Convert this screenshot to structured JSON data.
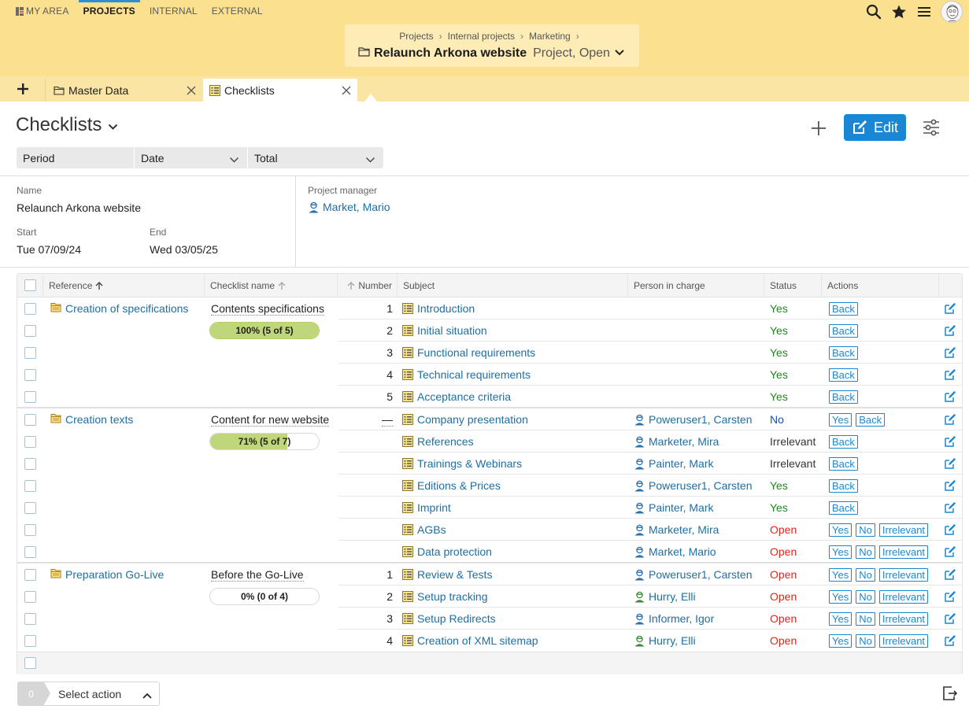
{
  "nav": {
    "items": [
      {
        "label": "MY AREA",
        "active": false
      },
      {
        "label": "PROJECTS",
        "active": true
      },
      {
        "label": "INTERNAL",
        "active": false
      },
      {
        "label": "EXTERNAL",
        "active": false
      }
    ]
  },
  "breadcrumb": [
    "Projects",
    "Internal projects",
    "Marketing"
  ],
  "object": {
    "name": "Relaunch Arkona website",
    "type": "Project, Open"
  },
  "tabs": [
    {
      "label": "Master Data",
      "active": false
    },
    {
      "label": "Checklists",
      "active": true
    }
  ],
  "page": {
    "title": "Checklists",
    "edit_label": "Edit"
  },
  "filters": [
    {
      "label": "Period"
    },
    {
      "label": "Date"
    },
    {
      "label": "Total"
    }
  ],
  "details": {
    "name_label": "Name",
    "name": "Relaunch Arkona website",
    "start_label": "Start",
    "start": "Tue 07/09/24",
    "end_label": "End",
    "end": "Wed 03/05/25",
    "pm_label": "Project manager",
    "pm": "Market, Mario"
  },
  "table": {
    "headers": {
      "reference": "Reference",
      "checklist": "Checklist name",
      "number": "Number",
      "subject": "Subject",
      "person": "Person in charge",
      "status": "Status",
      "actions": "Actions"
    },
    "groups": [
      {
        "reference": "Creation of specifications",
        "checklist": "Contents specifications",
        "progress_label": "100% (5 of 5)",
        "progress": 1.0,
        "rows": [
          {
            "number": "1",
            "subject": "Introduction",
            "person": "",
            "status": "Yes",
            "status_kind": "yes",
            "actions": [
              "Back"
            ]
          },
          {
            "number": "2",
            "subject": "Initial situation",
            "person": "",
            "status": "Yes",
            "status_kind": "yes",
            "actions": [
              "Back"
            ]
          },
          {
            "number": "3",
            "subject": "Functional requirements",
            "person": "",
            "status": "Yes",
            "status_kind": "yes",
            "actions": [
              "Back"
            ]
          },
          {
            "number": "4",
            "subject": "Technical requirements",
            "person": "",
            "status": "Yes",
            "status_kind": "yes",
            "actions": [
              "Back"
            ]
          },
          {
            "number": "5",
            "subject": "Acceptance criteria",
            "person": "",
            "status": "Yes",
            "status_kind": "yes",
            "actions": [
              "Back"
            ]
          }
        ]
      },
      {
        "reference": "Creation texts",
        "checklist": "Content for new website",
        "progress_label": "71% (5 of 7)",
        "progress": 0.71,
        "rows": [
          {
            "number": "—",
            "subject": "Company presentation",
            "person": "Poweruser1, Carsten",
            "person_color": "#2b6fb3",
            "status": "No",
            "status_kind": "no",
            "actions": [
              "Yes",
              "Back"
            ]
          },
          {
            "number": "",
            "subject": "References",
            "person": "Marketer, Mira",
            "person_color": "#2b6fb3",
            "status": "Irrelevant",
            "status_kind": "irr",
            "actions": [
              "Back"
            ]
          },
          {
            "number": "",
            "subject": "Trainings & Webinars",
            "person": "Painter, Mark",
            "person_color": "#2b6fb3",
            "status": "Irrelevant",
            "status_kind": "irr",
            "actions": [
              "Back"
            ]
          },
          {
            "number": "",
            "subject": "Editions & Prices",
            "person": "Poweruser1, Carsten",
            "person_color": "#2b6fb3",
            "status": "Yes",
            "status_kind": "yes",
            "actions": [
              "Back"
            ]
          },
          {
            "number": "",
            "subject": "Imprint",
            "person": "Painter, Mark",
            "person_color": "#2b6fb3",
            "status": "Yes",
            "status_kind": "yes",
            "actions": [
              "Back"
            ]
          },
          {
            "number": "",
            "subject": "AGBs",
            "person": "Marketer, Mira",
            "person_color": "#2b6fb3",
            "status": "Open",
            "status_kind": "open",
            "actions": [
              "Yes",
              "No",
              "Irrelevant"
            ]
          },
          {
            "number": "",
            "subject": "Data protection",
            "person": "Market, Mario",
            "person_color": "#2b6fb3",
            "status": "Open",
            "status_kind": "open",
            "actions": [
              "Yes",
              "No",
              "Irrelevant"
            ]
          }
        ]
      },
      {
        "reference": "Preparation Go-Live",
        "checklist": "Before the Go-Live",
        "progress_label": "0% (0 of 4)",
        "progress": 0.0,
        "rows": [
          {
            "number": "1",
            "subject": "Review & Tests",
            "person": "Poweruser1, Carsten",
            "person_color": "#2b6fb3",
            "status": "Open",
            "status_kind": "open",
            "actions": [
              "Yes",
              "No",
              "Irrelevant"
            ]
          },
          {
            "number": "2",
            "subject": "Setup tracking",
            "person": "Hurry, Elli",
            "person_color": "#3a8a3a",
            "status": "Open",
            "status_kind": "open",
            "actions": [
              "Yes",
              "No",
              "Irrelevant"
            ]
          },
          {
            "number": "3",
            "subject": "Setup Redirects",
            "person": "Informer, Igor",
            "person_color": "#2b6fb3",
            "status": "Open",
            "status_kind": "open",
            "actions": [
              "Yes",
              "No",
              "Irrelevant"
            ]
          },
          {
            "number": "4",
            "subject": "Creation of XML sitemap",
            "person": "Hurry, Elli",
            "person_color": "#3a8a3a",
            "status": "Open",
            "status_kind": "open",
            "actions": [
              "Yes",
              "No",
              "Irrelevant"
            ]
          }
        ]
      }
    ]
  },
  "footer": {
    "selected_count": "0",
    "select_action": "Select action"
  },
  "colors": {
    "accent": "#1b87d4",
    "header_bg": "#fbe08f",
    "yes": "#1a8a1a",
    "no": "#1b4fb8",
    "open": "#e3241b",
    "progress": "#c0d67a"
  }
}
